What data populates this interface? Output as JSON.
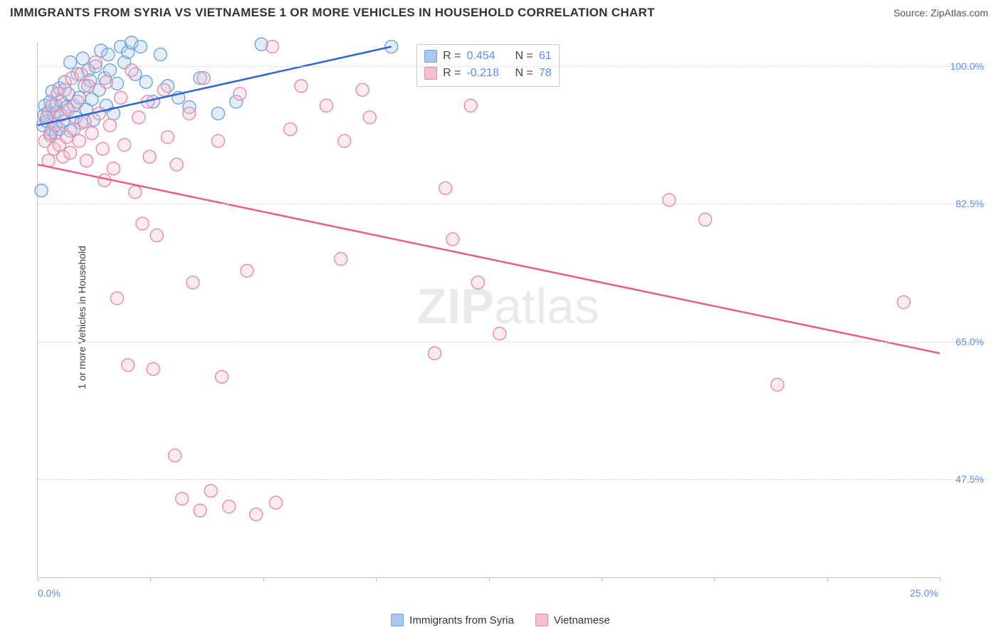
{
  "title": "IMMIGRANTS FROM SYRIA VS VIETNAMESE 1 OR MORE VEHICLES IN HOUSEHOLD CORRELATION CHART",
  "source": "Source: ZipAtlas.com",
  "y_axis_label": "1 or more Vehicles in Household",
  "watermark": {
    "bold": "ZIP",
    "thin": "atlas"
  },
  "chart": {
    "type": "scatter",
    "xlim": [
      0,
      25
    ],
    "ylim": [
      35,
      103
    ],
    "x_ticks": [
      0,
      3.125,
      6.25,
      9.375,
      12.5,
      15.625,
      18.75,
      21.875,
      25
    ],
    "x_tick_labels": {
      "0": "0.0%",
      "25": "25.0%"
    },
    "y_gridlines": [
      47.5,
      65.0,
      82.5,
      100.0
    ],
    "y_tick_labels": [
      "47.5%",
      "65.0%",
      "82.5%",
      "100.0%"
    ],
    "background_color": "#ffffff",
    "grid_color": "#d8d8d8",
    "axis_color": "#bfbfbf",
    "tick_label_color": "#5b8def",
    "marker_radius": 9,
    "marker_fill_opacity": 0.32,
    "line_width": 2.5,
    "series": [
      {
        "name": "Immigrants from Syria",
        "fill": "#a9c7ef",
        "stroke": "#6fa3e0",
        "line_color": "#2f64d6",
        "R": "0.454",
        "N": "61",
        "regression": {
          "x1": 0,
          "y1": 92.5,
          "x2": 9.8,
          "y2": 102.5
        },
        "points": [
          [
            0.1,
            84.2
          ],
          [
            0.15,
            92.5
          ],
          [
            0.18,
            93.8
          ],
          [
            0.2,
            95.0
          ],
          [
            0.25,
            93.0
          ],
          [
            0.3,
            94.2
          ],
          [
            0.35,
            91.2
          ],
          [
            0.35,
            95.5
          ],
          [
            0.4,
            92.0
          ],
          [
            0.4,
            96.8
          ],
          [
            0.45,
            93.8
          ],
          [
            0.5,
            91.5
          ],
          [
            0.5,
            95.0
          ],
          [
            0.55,
            94.2
          ],
          [
            0.6,
            92.0
          ],
          [
            0.6,
            97.2
          ],
          [
            0.65,
            95.5
          ],
          [
            0.7,
            93.0
          ],
          [
            0.75,
            98.0
          ],
          [
            0.8,
            94.8
          ],
          [
            0.85,
            96.5
          ],
          [
            0.9,
            91.8
          ],
          [
            0.9,
            100.5
          ],
          [
            1.0,
            95.0
          ],
          [
            1.05,
            93.5
          ],
          [
            1.1,
            99.0
          ],
          [
            1.15,
            96.0
          ],
          [
            1.2,
            92.8
          ],
          [
            1.25,
            101.0
          ],
          [
            1.3,
            97.5
          ],
          [
            1.35,
            94.5
          ],
          [
            1.4,
            99.5
          ],
          [
            1.45,
            98.2
          ],
          [
            1.5,
            95.8
          ],
          [
            1.55,
            93.2
          ],
          [
            1.6,
            100.0
          ],
          [
            1.7,
            97.0
          ],
          [
            1.75,
            102.0
          ],
          [
            1.85,
            98.5
          ],
          [
            1.9,
            95.0
          ],
          [
            1.95,
            101.5
          ],
          [
            2.0,
            99.5
          ],
          [
            2.1,
            94.0
          ],
          [
            2.2,
            97.8
          ],
          [
            2.3,
            102.5
          ],
          [
            2.4,
            100.5
          ],
          [
            2.5,
            101.8
          ],
          [
            2.6,
            103.0
          ],
          [
            2.7,
            99.0
          ],
          [
            2.85,
            102.5
          ],
          [
            3.0,
            98.0
          ],
          [
            3.2,
            95.5
          ],
          [
            3.4,
            101.5
          ],
          [
            3.6,
            97.5
          ],
          [
            3.9,
            96.0
          ],
          [
            4.2,
            94.8
          ],
          [
            4.5,
            98.5
          ],
          [
            5.0,
            94.0
          ],
          [
            5.5,
            95.5
          ],
          [
            6.2,
            102.8
          ],
          [
            9.8,
            102.5
          ]
        ]
      },
      {
        "name": "Vietnamese",
        "fill": "#f4c2cf",
        "stroke": "#e88aa3",
        "line_color": "#e85d8a",
        "R": "-0.218",
        "N": "78",
        "regression": {
          "x1": 0,
          "y1": 87.5,
          "x2": 25,
          "y2": 63.5
        },
        "points": [
          [
            0.2,
            90.5
          ],
          [
            0.25,
            93.5
          ],
          [
            0.3,
            88.0
          ],
          [
            0.35,
            91.5
          ],
          [
            0.4,
            95.0
          ],
          [
            0.45,
            89.5
          ],
          [
            0.5,
            92.5
          ],
          [
            0.55,
            96.5
          ],
          [
            0.6,
            90.0
          ],
          [
            0.65,
            93.8
          ],
          [
            0.7,
            88.5
          ],
          [
            0.75,
            97.0
          ],
          [
            0.8,
            91.0
          ],
          [
            0.85,
            94.5
          ],
          [
            0.9,
            89.0
          ],
          [
            0.95,
            98.5
          ],
          [
            1.0,
            92.0
          ],
          [
            1.1,
            95.5
          ],
          [
            1.15,
            90.5
          ],
          [
            1.2,
            99.0
          ],
          [
            1.3,
            93.0
          ],
          [
            1.35,
            88.0
          ],
          [
            1.4,
            97.5
          ],
          [
            1.5,
            91.5
          ],
          [
            1.6,
            100.5
          ],
          [
            1.7,
            94.0
          ],
          [
            1.8,
            89.5
          ],
          [
            1.85,
            85.5
          ],
          [
            1.9,
            98.0
          ],
          [
            2.0,
            92.5
          ],
          [
            2.1,
            87.0
          ],
          [
            2.2,
            70.5
          ],
          [
            2.3,
            96.0
          ],
          [
            2.4,
            90.0
          ],
          [
            2.5,
            62.0
          ],
          [
            2.6,
            99.5
          ],
          [
            2.7,
            84.0
          ],
          [
            2.8,
            93.5
          ],
          [
            2.9,
            80.0
          ],
          [
            3.05,
            95.5
          ],
          [
            3.1,
            88.5
          ],
          [
            3.2,
            61.5
          ],
          [
            3.3,
            78.5
          ],
          [
            3.5,
            97.0
          ],
          [
            3.6,
            91.0
          ],
          [
            3.8,
            50.5
          ],
          [
            3.85,
            87.5
          ],
          [
            4.0,
            45.0
          ],
          [
            4.2,
            94.0
          ],
          [
            4.3,
            72.5
          ],
          [
            4.5,
            43.5
          ],
          [
            4.6,
            98.5
          ],
          [
            4.8,
            46.0
          ],
          [
            5.0,
            90.5
          ],
          [
            5.1,
            60.5
          ],
          [
            5.3,
            44.0
          ],
          [
            5.6,
            96.5
          ],
          [
            5.8,
            74.0
          ],
          [
            6.05,
            43.0
          ],
          [
            6.5,
            102.5
          ],
          [
            6.6,
            44.5
          ],
          [
            7.0,
            92.0
          ],
          [
            7.3,
            97.5
          ],
          [
            8.0,
            95.0
          ],
          [
            8.4,
            75.5
          ],
          [
            8.5,
            90.5
          ],
          [
            9.0,
            97.0
          ],
          [
            9.2,
            93.5
          ],
          [
            11.0,
            63.5
          ],
          [
            11.3,
            84.5
          ],
          [
            11.5,
            78.0
          ],
          [
            12.0,
            95.0
          ],
          [
            12.2,
            72.5
          ],
          [
            12.8,
            66.0
          ],
          [
            17.5,
            83.0
          ],
          [
            18.5,
            80.5
          ],
          [
            20.5,
            59.5
          ],
          [
            24.0,
            70.0
          ]
        ]
      }
    ],
    "legend_top": {
      "R_label": "R =",
      "N_label": "N ="
    },
    "bottom_legend": [
      "Immigrants from Syria",
      "Vietnamese"
    ]
  }
}
